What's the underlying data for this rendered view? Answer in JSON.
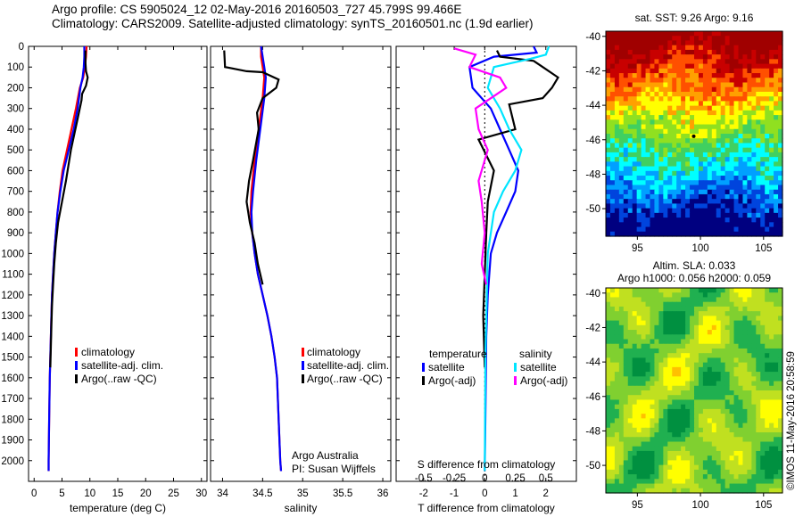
{
  "header": {
    "title": "Argo profile: CS 5905024_12 02-May-2016 20160503_727 45.799S 99.466E",
    "subtitle": "Climatology: CARS2009. Satellite-adjusted climatology: synTS_20160501.nc (1.9d earlier)"
  },
  "stamp": "©IMOS 11-May-2016 20:58:59",
  "colors": {
    "climatology": "#ff0000",
    "satellite": "#0000ff",
    "argo": "#000000",
    "satellite_s": "#00e5ff",
    "argo_s": "#ff00ff"
  },
  "chart_data": [
    {
      "type": "line",
      "xlabel": "temperature (deg C)",
      "ylim": [
        2100,
        0
      ],
      "xlim": [
        -1,
        31
      ],
      "xticks": [
        "0",
        "5",
        "10",
        "15",
        "20",
        "25",
        "30"
      ],
      "yticks": [
        "0",
        "100",
        "200",
        "300",
        "400",
        "500",
        "600",
        "700",
        "800",
        "900",
        "1000",
        "1100",
        "1200",
        "1300",
        "1400",
        "1500",
        "1600",
        "1700",
        "1800",
        "1900",
        "2000"
      ],
      "legend": [
        "climatology",
        "satellite-adj. clim.",
        "Argo(..raw -QC)"
      ],
      "series": [
        {
          "name": "climatology",
          "color": "#ff0000",
          "x": [
            9.4,
            9.3,
            9.1,
            8.8,
            8.2,
            7.5,
            6.7,
            5.9,
            5.1,
            4.6,
            4.2,
            3.9,
            3.6,
            3.4,
            3.2,
            3.1,
            3.0,
            2.9,
            2.8,
            2.7,
            2.6,
            2.6
          ],
          "y": [
            0,
            50,
            100,
            150,
            200,
            300,
            400,
            500,
            600,
            700,
            800,
            900,
            1000,
            1100,
            1200,
            1300,
            1400,
            1500,
            1600,
            1800,
            2000,
            2050
          ]
        },
        {
          "name": "satellite-adj. clim.",
          "color": "#0000ff",
          "x": [
            9.0,
            9.0,
            8.9,
            8.7,
            8.3,
            7.8,
            7.1,
            6.2,
            5.3,
            4.7,
            4.2,
            3.9,
            3.6,
            3.4,
            3.2,
            3.1,
            3.0,
            2.9,
            2.8,
            2.7,
            2.6,
            2.6
          ],
          "y": [
            0,
            50,
            100,
            150,
            200,
            300,
            400,
            500,
            600,
            700,
            800,
            900,
            1000,
            1100,
            1200,
            1300,
            1400,
            1500,
            1600,
            1800,
            2000,
            2050
          ]
        },
        {
          "name": "Argo(..raw -QC)",
          "color": "#000000",
          "x": [
            9.2,
            9.2,
            9.3,
            9.6,
            9.3,
            8.6,
            8.5,
            7.8,
            6.6,
            5.7,
            5.0,
            4.3,
            3.9,
            3.6,
            3.4,
            3.2,
            3.1,
            3.0,
            2.9
          ],
          "y": [
            20,
            80,
            120,
            150,
            190,
            230,
            260,
            350,
            500,
            650,
            750,
            850,
            950,
            1050,
            1150,
            1250,
            1350,
            1450,
            1550
          ]
        }
      ]
    },
    {
      "type": "line",
      "xlabel": "salinity",
      "ylim": [
        2100,
        0
      ],
      "xlim": [
        33.85,
        36.1
      ],
      "xticks": [
        "34",
        "34.5",
        "35",
        "35.5",
        "36"
      ],
      "legend": [
        "climatology",
        "satellite-adj. clim.",
        "Argo(..raw -QC)"
      ],
      "annotations": [
        "Argo Australia",
        "PI: Susan Wijffels"
      ],
      "series": [
        {
          "name": "climatology",
          "color": "#ff0000",
          "x": [
            34.48,
            34.48,
            34.5,
            34.52,
            34.5,
            34.45,
            34.4,
            34.36,
            34.35,
            34.37,
            34.4,
            34.44,
            34.5,
            34.56,
            34.61,
            34.65,
            34.68,
            34.7,
            34.72,
            34.73
          ],
          "y": [
            0,
            50,
            100,
            150,
            250,
            400,
            550,
            700,
            800,
            900,
            1000,
            1100,
            1200,
            1300,
            1400,
            1500,
            1600,
            1800,
            2000,
            2050
          ]
        },
        {
          "name": "satellite-adj. clim.",
          "color": "#0000ff",
          "x": [
            34.48,
            34.5,
            34.52,
            34.54,
            34.52,
            34.47,
            34.42,
            34.38,
            34.36,
            34.37,
            34.4,
            34.44,
            34.5,
            34.56,
            34.61,
            34.65,
            34.68,
            34.7,
            34.72,
            34.73
          ],
          "y": [
            0,
            50,
            100,
            150,
            250,
            400,
            550,
            700,
            800,
            900,
            1000,
            1100,
            1200,
            1300,
            1400,
            1500,
            1600,
            1800,
            2000,
            2050
          ]
        },
        {
          "name": "Argo(..raw -QC)",
          "color": "#000000",
          "x": [
            34.02,
            34.03,
            34.3,
            34.5,
            34.7,
            34.67,
            34.5,
            34.43,
            34.45,
            34.38,
            34.33,
            34.3,
            34.34,
            34.4,
            34.44,
            34.5
          ],
          "y": [
            20,
            100,
            120,
            125,
            160,
            200,
            250,
            320,
            400,
            550,
            650,
            750,
            850,
            950,
            1050,
            1150
          ]
        }
      ]
    },
    {
      "type": "line",
      "xlabel": "T difference from climatology",
      "x2label": "S difference from climatology",
      "ylim": [
        2100,
        0
      ],
      "xlim": [
        -2.9,
        3.0
      ],
      "xticks": [
        "-2",
        "-1",
        "0",
        "1",
        "2"
      ],
      "x2ticks": [
        "-0.5",
        "-0.25",
        "0",
        "0.25",
        "0.5"
      ],
      "legend_groups": [
        {
          "header": "temperature",
          "items": [
            "satellite",
            "Argo(-adj)"
          ]
        },
        {
          "header": "salinity",
          "items": [
            "satellite",
            "Argo(-adj)"
          ]
        }
      ],
      "series": [
        {
          "name": "temperature satellite",
          "color": "#0000ff",
          "x": [
            1.6,
            1.7,
            0.3,
            -0.5,
            -0.4,
            0.2,
            0.5,
            0.8,
            1.1,
            1.0,
            0.7,
            0.4,
            0.2,
            0.1,
            0.05,
            0.02,
            0.0
          ],
          "y": [
            0,
            30,
            50,
            100,
            200,
            300,
            400,
            500,
            600,
            700,
            800,
            900,
            1000,
            1200,
            1400,
            1800,
            2050
          ]
        },
        {
          "name": "temperature Argo(-adj)",
          "color": "#000000",
          "x": [
            0.4,
            0.5,
            1.6,
            1.9,
            2.4,
            2.2,
            1.9,
            0.8,
            1.0,
            -0.2,
            0.3,
            0.1,
            0.05,
            0.0,
            -0.05,
            0.0
          ],
          "y": [
            20,
            50,
            70,
            100,
            150,
            200,
            250,
            280,
            400,
            450,
            600,
            750,
            900,
            1100,
            1300,
            1550
          ]
        },
        {
          "name": "salinity satellite",
          "color": "#00e5ff",
          "x": [
            2.1,
            2.0,
            1.5,
            0.3,
            0.1,
            0.5,
            0.8,
            1.2,
            1.0,
            0.6,
            0.3,
            0.1,
            0.02,
            0.0
          ],
          "y": [
            0,
            40,
            60,
            100,
            200,
            300,
            400,
            500,
            600,
            700,
            800,
            1000,
            1500,
            2050
          ]
        },
        {
          "name": "salinity Argo(-adj)",
          "color": "#ff00ff",
          "x": [
            -1.0,
            -0.3,
            -0.5,
            0.5,
            0.7,
            -0.3,
            -0.2,
            0.1,
            -0.2,
            -0.1,
            0.0,
            -0.1,
            0.05
          ],
          "y": [
            10,
            40,
            100,
            150,
            200,
            300,
            400,
            500,
            650,
            750,
            900,
            1050,
            1150
          ]
        }
      ]
    },
    {
      "type": "heatmap",
      "title": "sat. SST: 9.26 Argo: 9.16",
      "xlim": [
        92.5,
        106.5
      ],
      "ylim": [
        -51.6,
        -39.7
      ],
      "xticks": [
        "95",
        "100",
        "105"
      ],
      "yticks": [
        "-40",
        "-42",
        "-44",
        "-46",
        "-48",
        "-50"
      ],
      "colors": [
        "#000080",
        "#0044dd",
        "#00a0ff",
        "#00ffff",
        "#40d060",
        "#90e020",
        "#ffff00",
        "#ffa000",
        "#ff5000",
        "#c80000",
        "#a00000"
      ]
    },
    {
      "type": "heatmap",
      "title": "Altim. SLA: 0.033",
      "subtitle": "Argo h1000: 0.056 h2000: 0.059",
      "xlim": [
        92.5,
        106.5
      ],
      "ylim": [
        -51.6,
        -39.7
      ],
      "xticks": [
        "95",
        "100",
        "105"
      ],
      "yticks": [
        "-40",
        "-42",
        "-44",
        "-46",
        "-48",
        "-50"
      ],
      "colors": [
        "#009040",
        "#20b050",
        "#80d030",
        "#c0e020",
        "#ffff00",
        "#ffc000",
        "#ff6000",
        "#ff0000"
      ]
    }
  ]
}
